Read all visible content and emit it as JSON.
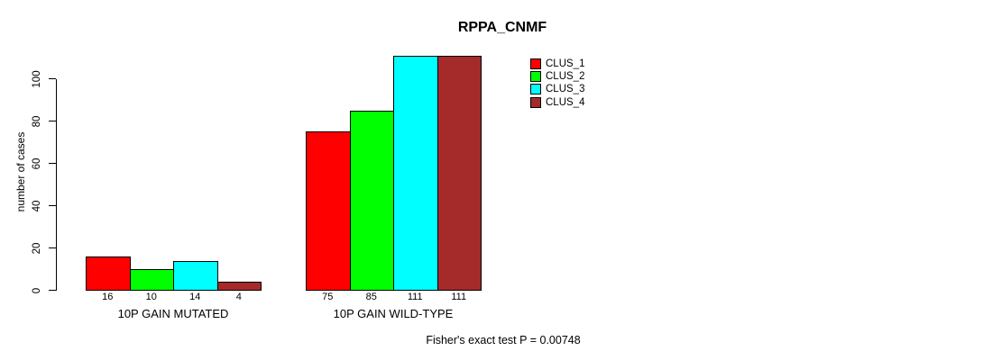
{
  "chart_data": {
    "type": "bar",
    "title": "RPPA_CNMF",
    "ylabel": "number of cases",
    "xlabel": "",
    "categories": [
      "10P GAIN MUTATED",
      "10P GAIN WILD-TYPE"
    ],
    "series": [
      {
        "name": "CLUS_1",
        "color": "#FF0000",
        "values": [
          16,
          75
        ]
      },
      {
        "name": "CLUS_2",
        "color": "#00FF00",
        "values": [
          10,
          85
        ]
      },
      {
        "name": "CLUS_3",
        "color": "#00FFFF",
        "values": [
          14,
          111
        ]
      },
      {
        "name": "CLUS_4",
        "color": "#A52A2A",
        "values": [
          4,
          111
        ]
      }
    ],
    "yticks": [
      0,
      20,
      40,
      60,
      80,
      100
    ],
    "ylim": [
      0,
      111.5
    ],
    "grid": false,
    "bar_value_labels_shown": true,
    "legend_position": "top-right",
    "legend_entries": [
      "CLUS_1",
      "CLUS_2",
      "CLUS_3",
      "CLUS_4"
    ],
    "annotation": "Fisher's exact test P = 0.00748",
    "axis_color": "#000000",
    "background_color": "#FFFFFF"
  }
}
